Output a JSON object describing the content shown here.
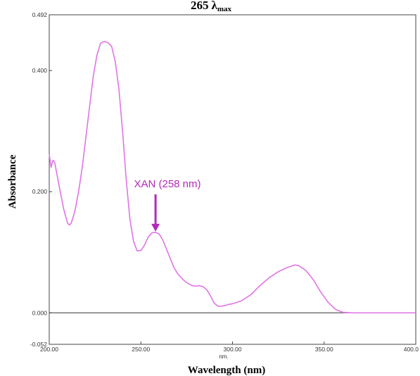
{
  "chart_data": {
    "type": "line",
    "title_value": "265",
    "title_symbol": "λ",
    "title_subscript": "max",
    "xlabel": "Wavelength (nm)",
    "xunit": "nm.",
    "ylabel": "Absorbance",
    "xlim": [
      200,
      400
    ],
    "ylim": [
      -0.052,
      0.492
    ],
    "xticks": [
      "200.00",
      "250.00",
      "300.00",
      "350.00",
      "400.0"
    ],
    "yticks": [
      {
        "value": 0.492,
        "label": "0.492"
      },
      {
        "value": 0.4,
        "label": "0.400"
      },
      {
        "value": 0.2,
        "label": "0.200"
      },
      {
        "value": 0.0,
        "label": "0.000"
      },
      {
        "value": -0.052,
        "label": "-0.052"
      }
    ],
    "zero_line": 0.0,
    "line_color": "#e074e6",
    "annotation": {
      "text": "XAN (258 nm)",
      "x": 258,
      "y": 0.133,
      "color": "#b22ab8"
    },
    "series": [
      {
        "values": [
          [
            200,
            0.262
          ],
          [
            201,
            0.24
          ],
          [
            202,
            0.252
          ],
          [
            203,
            0.248
          ],
          [
            204,
            0.232
          ],
          [
            206,
            0.2
          ],
          [
            208,
            0.17
          ],
          [
            210,
            0.148
          ],
          [
            211,
            0.145
          ],
          [
            212,
            0.148
          ],
          [
            214,
            0.168
          ],
          [
            216,
            0.2
          ],
          [
            218,
            0.24
          ],
          [
            220,
            0.29
          ],
          [
            222,
            0.34
          ],
          [
            224,
            0.39
          ],
          [
            226,
            0.425
          ],
          [
            228,
            0.445
          ],
          [
            230,
            0.448
          ],
          [
            232,
            0.446
          ],
          [
            234,
            0.44
          ],
          [
            236,
            0.415
          ],
          [
            238,
            0.37
          ],
          [
            240,
            0.3
          ],
          [
            242,
            0.22
          ],
          [
            244,
            0.155
          ],
          [
            246,
            0.118
          ],
          [
            248,
            0.102
          ],
          [
            250,
            0.103
          ],
          [
            252,
            0.112
          ],
          [
            254,
            0.125
          ],
          [
            256,
            0.132
          ],
          [
            258,
            0.133
          ],
          [
            260,
            0.13
          ],
          [
            262,
            0.12
          ],
          [
            264,
            0.105
          ],
          [
            266,
            0.09
          ],
          [
            268,
            0.075
          ],
          [
            270,
            0.065
          ],
          [
            272,
            0.058
          ],
          [
            274,
            0.052
          ],
          [
            276,
            0.048
          ],
          [
            278,
            0.045
          ],
          [
            280,
            0.044
          ],
          [
            282,
            0.045
          ],
          [
            284,
            0.043
          ],
          [
            286,
            0.038
          ],
          [
            288,
            0.028
          ],
          [
            290,
            0.016
          ],
          [
            292,
            0.011
          ],
          [
            294,
            0.011
          ],
          [
            296,
            0.012
          ],
          [
            298,
            0.014
          ],
          [
            300,
            0.015
          ],
          [
            305,
            0.02
          ],
          [
            310,
            0.03
          ],
          [
            315,
            0.045
          ],
          [
            320,
            0.058
          ],
          [
            325,
            0.068
          ],
          [
            330,
            0.075
          ],
          [
            334,
            0.079
          ],
          [
            336,
            0.078
          ],
          [
            340,
            0.07
          ],
          [
            344,
            0.055
          ],
          [
            348,
            0.035
          ],
          [
            352,
            0.018
          ],
          [
            356,
            0.006
          ],
          [
            360,
            0.001
          ],
          [
            365,
            0.0
          ],
          [
            370,
            0.0
          ],
          [
            380,
            0.0
          ],
          [
            390,
            0.0
          ],
          [
            400,
            0.0
          ]
        ]
      }
    ]
  }
}
